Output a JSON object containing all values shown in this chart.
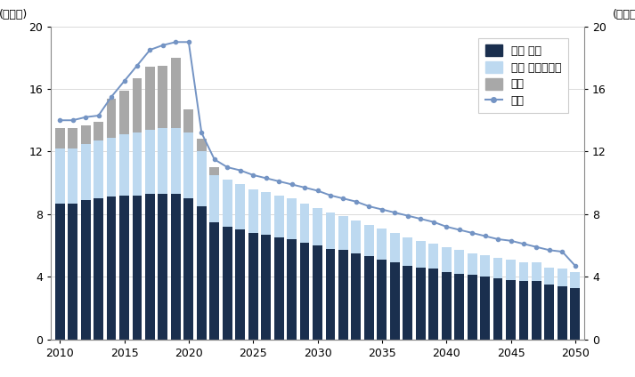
{
  "years": [
    2010,
    2011,
    2012,
    2013,
    2014,
    2015,
    2016,
    2017,
    2018,
    2019,
    2020,
    2021,
    2022,
    2023,
    2024,
    2025,
    2026,
    2027,
    2028,
    2029,
    2030,
    2031,
    2032,
    2033,
    2034,
    2035,
    2036,
    2037,
    2038,
    2039,
    2040,
    2041,
    2042,
    2043,
    2044,
    2045,
    2046,
    2047,
    2048,
    2049,
    2050
  ],
  "ingu_jeungga": [
    8.7,
    8.7,
    8.9,
    9.0,
    9.1,
    9.2,
    9.2,
    9.3,
    9.3,
    9.3,
    9.0,
    8.5,
    7.5,
    7.2,
    7.0,
    6.8,
    6.7,
    6.5,
    6.4,
    6.2,
    6.0,
    5.8,
    5.7,
    5.5,
    5.3,
    5.1,
    4.9,
    4.7,
    4.6,
    4.5,
    4.3,
    4.2,
    4.1,
    4.0,
    3.9,
    3.8,
    3.7,
    3.7,
    3.5,
    3.4,
    3.3
  ],
  "jutaek_upgrade": [
    3.5,
    3.5,
    3.6,
    3.7,
    3.8,
    3.9,
    4.0,
    4.1,
    4.2,
    4.2,
    4.2,
    3.5,
    3.0,
    3.0,
    2.9,
    2.8,
    2.7,
    2.7,
    2.6,
    2.5,
    2.4,
    2.3,
    2.2,
    2.1,
    2.0,
    2.0,
    1.9,
    1.8,
    1.7,
    1.6,
    1.6,
    1.5,
    1.4,
    1.4,
    1.3,
    1.3,
    1.2,
    1.2,
    1.1,
    1.1,
    1.0
  ],
  "tuja": [
    1.3,
    1.3,
    1.2,
    1.2,
    2.5,
    2.8,
    3.5,
    4.0,
    4.0,
    4.5,
    1.5,
    0.8,
    0.5,
    0.0,
    0.0,
    0.0,
    0.0,
    0.0,
    0.0,
    0.0,
    0.0,
    0.0,
    0.0,
    0.0,
    0.0,
    0.0,
    0.0,
    0.0,
    0.0,
    0.0,
    0.0,
    0.0,
    0.0,
    0.0,
    0.0,
    0.0,
    0.0,
    0.0,
    0.0,
    0.0,
    0.0
  ],
  "total_line": [
    14.0,
    14.0,
    14.2,
    14.3,
    15.5,
    16.5,
    17.5,
    18.5,
    18.8,
    19.0,
    19.0,
    13.2,
    11.5,
    11.0,
    10.8,
    10.5,
    10.3,
    10.1,
    9.9,
    9.7,
    9.5,
    9.2,
    9.0,
    8.8,
    8.5,
    8.3,
    8.1,
    7.9,
    7.7,
    7.5,
    7.2,
    7.0,
    6.8,
    6.6,
    6.4,
    6.3,
    6.1,
    5.9,
    5.7,
    5.6,
    4.7
  ],
  "color_ingu": "#1a2f4e",
  "color_jutaek": "#bdd9f0",
  "color_tuja": "#a8a8a8",
  "color_line": "#7494c4",
  "ylim": [
    0,
    20
  ],
  "yticks": [
    0,
    4,
    8,
    12,
    16,
    20
  ],
  "ylabel_left": "(백만채)",
  "ylabel_right": "(백만채)",
  "xticks": [
    2010,
    2015,
    2020,
    2025,
    2030,
    2035,
    2040,
    2045,
    2050
  ],
  "legend_labels": [
    "인구 증가",
    "주택 업그레이드",
    "투자",
    "전체"
  ],
  "background_color": "#ffffff",
  "font_family": "NanumGothic"
}
